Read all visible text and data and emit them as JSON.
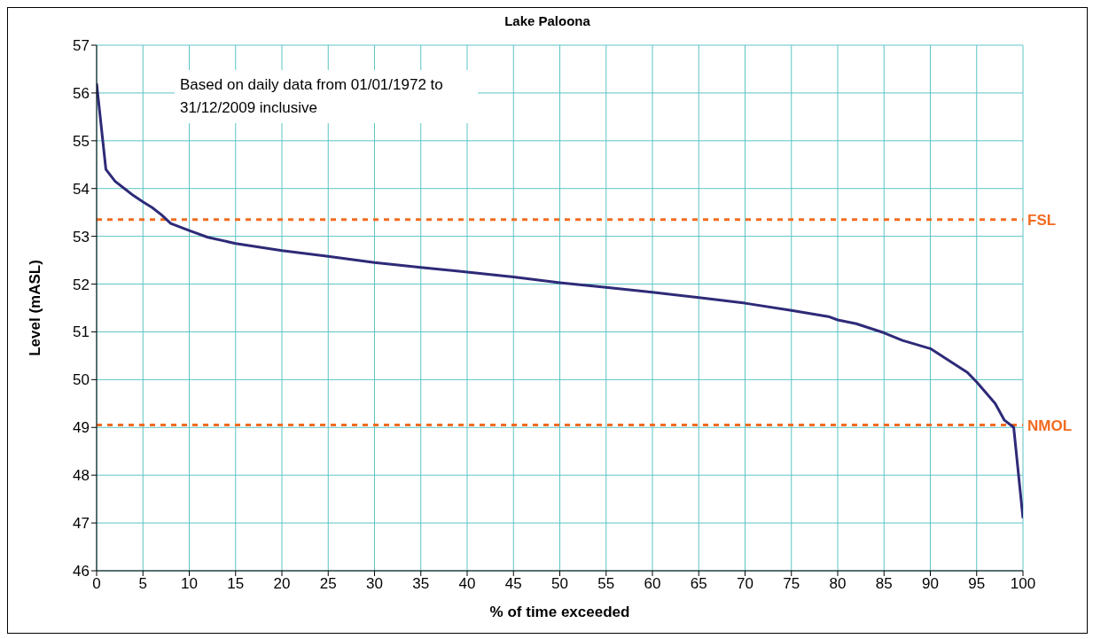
{
  "chart_data": {
    "type": "line",
    "title": "Lake Paloona",
    "xlabel": "% of time exceeded",
    "ylabel": "Level (mASL)",
    "x": [
      0,
      1,
      2,
      3,
      4,
      5,
      6,
      7,
      8,
      10,
      12,
      15,
      20,
      25,
      30,
      35,
      40,
      45,
      50,
      55,
      60,
      65,
      70,
      75,
      79,
      80,
      82,
      85,
      87,
      90,
      92,
      94,
      95,
      97,
      98,
      99,
      100
    ],
    "series": [
      {
        "color": "#2e2a78",
        "values": [
          56.2,
          54.4,
          54.15,
          54.0,
          53.85,
          53.72,
          53.6,
          53.45,
          53.27,
          53.12,
          52.98,
          52.85,
          52.7,
          52.58,
          52.45,
          52.35,
          52.25,
          52.15,
          52.03,
          51.93,
          51.83,
          51.72,
          51.6,
          51.45,
          51.32,
          51.25,
          51.17,
          50.98,
          50.82,
          50.65,
          50.4,
          50.15,
          49.95,
          49.5,
          49.15,
          49.0,
          47.1
        ]
      }
    ],
    "xlim": [
      0,
      100
    ],
    "xticks": [
      0,
      5,
      10,
      15,
      20,
      25,
      30,
      35,
      40,
      45,
      50,
      55,
      60,
      65,
      70,
      75,
      80,
      85,
      90,
      95,
      100
    ],
    "ylim": [
      46,
      57
    ],
    "yticks": [
      46,
      47,
      48,
      49,
      50,
      51,
      52,
      53,
      54,
      55,
      56,
      57
    ],
    "grid": true,
    "legend": false,
    "marker": "none",
    "line_style": "solid",
    "ref_lines": [
      {
        "axis": "y",
        "value": 53.35,
        "label": "FSL",
        "color": "#f26b21",
        "line_style": "dashed"
      },
      {
        "axis": "y",
        "value": 49.05,
        "label": "NMOL",
        "color": "#f26b21",
        "line_style": "dashed"
      }
    ],
    "annotations": [
      "Based on daily data from 01/01/1972 to 31/12/2009 inclusive"
    ]
  }
}
